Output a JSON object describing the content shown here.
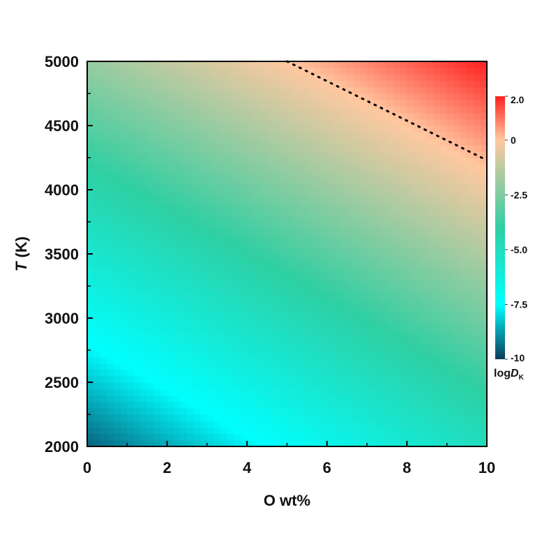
{
  "chart_data": {
    "type": "heatmap",
    "x": {
      "label": "O wt%",
      "range": [
        0,
        10
      ],
      "ticks": [
        0,
        2,
        4,
        6,
        8,
        10
      ]
    },
    "y": {
      "label_italic": "T",
      "label_rest": " (K)",
      "range": [
        2000,
        5000
      ],
      "ticks": [
        2000,
        2500,
        3000,
        3500,
        4000,
        4500,
        5000
      ]
    },
    "colorbar": {
      "label_prefix": "log",
      "label_italic": "D",
      "label_subscript": "K",
      "range": [
        -10,
        2
      ],
      "tick_labels": [
        "2.0",
        "0",
        "-2.5",
        "-5.0",
        "-7.5",
        "-10"
      ],
      "tick_values": [
        2,
        0,
        -2.5,
        -5,
        -7.5,
        -10
      ],
      "colors": [
        {
          "value": -10,
          "color": "#0b3a5c"
        },
        {
          "value": -7.5,
          "color": "#00ffff"
        },
        {
          "value": -4.0,
          "color": "#2fcfa2"
        },
        {
          "value": 0,
          "color": "#ffc8a0"
        },
        {
          "value": 2,
          "color": "#ff2020"
        }
      ]
    },
    "field": {
      "description_equation": "logD = a + bx*O + by*T",
      "corners": [
        {
          "x": 0,
          "y": 2000,
          "value": -9.5
        },
        {
          "x": 10,
          "y": 2000,
          "value": -5.0
        },
        {
          "x": 0,
          "y": 5000,
          "value": -2.0
        },
        {
          "x": 10,
          "y": 5000,
          "value": 2.0
        }
      ]
    },
    "boundary_line": {
      "style": "dotted",
      "points": [
        [
          5.0,
          5000
        ],
        [
          10.0,
          4230
        ]
      ]
    }
  }
}
